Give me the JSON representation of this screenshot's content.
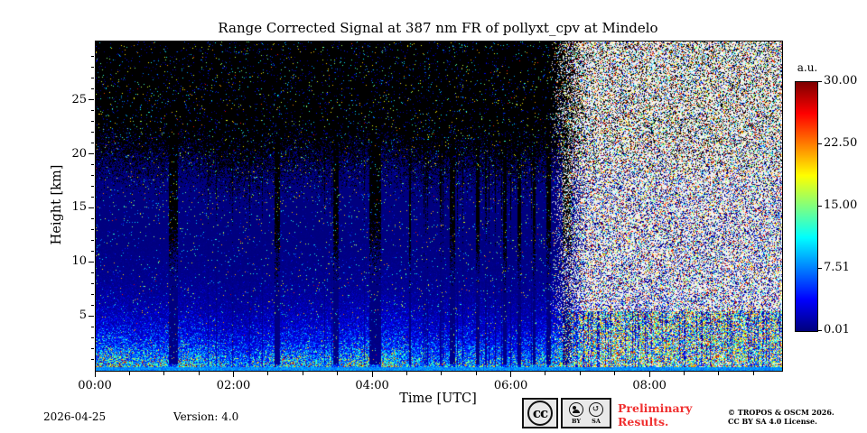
{
  "title": "Range Corrected Signal at 387 nm FR of pollyxt_cpv at Mindelo",
  "axes": {
    "x": {
      "label": "Time [UTC]",
      "ticks": [
        {
          "hour": 0,
          "label": "00:00"
        },
        {
          "hour": 2,
          "label": "02:00"
        },
        {
          "hour": 4,
          "label": "04:00"
        },
        {
          "hour": 6,
          "label": "06:00"
        },
        {
          "hour": 8,
          "label": "08:00"
        }
      ],
      "minor_step_hours": 0.5,
      "range_hours": [
        0,
        9.9
      ]
    },
    "y": {
      "label": "Height [km]",
      "ticks": [
        {
          "km": 5,
          "label": "5"
        },
        {
          "km": 10,
          "label": "10"
        },
        {
          "km": 15,
          "label": "15"
        },
        {
          "km": 20,
          "label": "20"
        },
        {
          "km": 25,
          "label": "25"
        }
      ],
      "minor_step_km": 1,
      "range_km": [
        0,
        30.5
      ]
    }
  },
  "colorbar": {
    "label": "a.u.",
    "ticks": [
      "30.00",
      "22.50",
      "15.00",
      "7.51",
      "0.01"
    ],
    "vmin": 0.01,
    "vmax": 30
  },
  "footer": {
    "date": "2026-04-25",
    "version": "Version: 4.0",
    "preliminary": "Preliminary Results.",
    "copyright_line1": "© TROPOS & OSCM 2026.",
    "copyright_line2": "CC BY SA 4.0 License.",
    "badge": {
      "cc": "cc",
      "by": "BY",
      "sa": "SA"
    }
  },
  "chart_data": {
    "type": "heatmap",
    "title": "Range Corrected Signal at 387 nm FR of pollyxt_cpv at Mindelo",
    "xlabel": "Time [UTC]",
    "ylabel": "Height [km]",
    "x_range_hours": [
      0,
      9.9
    ],
    "y_range_km": [
      0,
      30.5
    ],
    "colormap": "jet",
    "value_range": [
      0.01,
      30
    ],
    "under_vmin_color": "#000000",
    "legend_position": "right-colorbar",
    "grid": false,
    "features": {
      "description": "Lidar quicklook: bright cyan aerosol layer near the surface, signal decaying with height into dark-blue/black photon-noise speckle; vertical dark gaps from measurement interruptions; dense white/multicolor daylight noise after ~06:40 UTC with residual blue signal columns below 5.5 km and a continuous cyan near-surface band.",
      "surface_band_top_km": 0.35,
      "surface_band_value": 8,
      "profile_surface_value": 9,
      "profile_scale_height_km": 2.8,
      "profile_secondary_value": 3,
      "profile_secondary_scale_km": 1.2,
      "daytime_noise_start_hour": 6.55,
      "daytime_noise_full_hour": 7.1,
      "noise_density": 0.82,
      "speckle_dot_probability": 0.05,
      "gaps_hours": [
        [
          1.05,
          1.19
        ],
        [
          2.58,
          2.66
        ],
        [
          3.42,
          3.5
        ],
        [
          3.95,
          4.12
        ],
        [
          4.52,
          4.55
        ],
        [
          5.1,
          5.18
        ],
        [
          5.49,
          5.53
        ],
        [
          5.87,
          5.93
        ],
        [
          6.08,
          6.14
        ],
        [
          6.3,
          6.34
        ],
        [
          6.5,
          6.56
        ],
        [
          6.74,
          6.86
        ]
      ]
    }
  }
}
